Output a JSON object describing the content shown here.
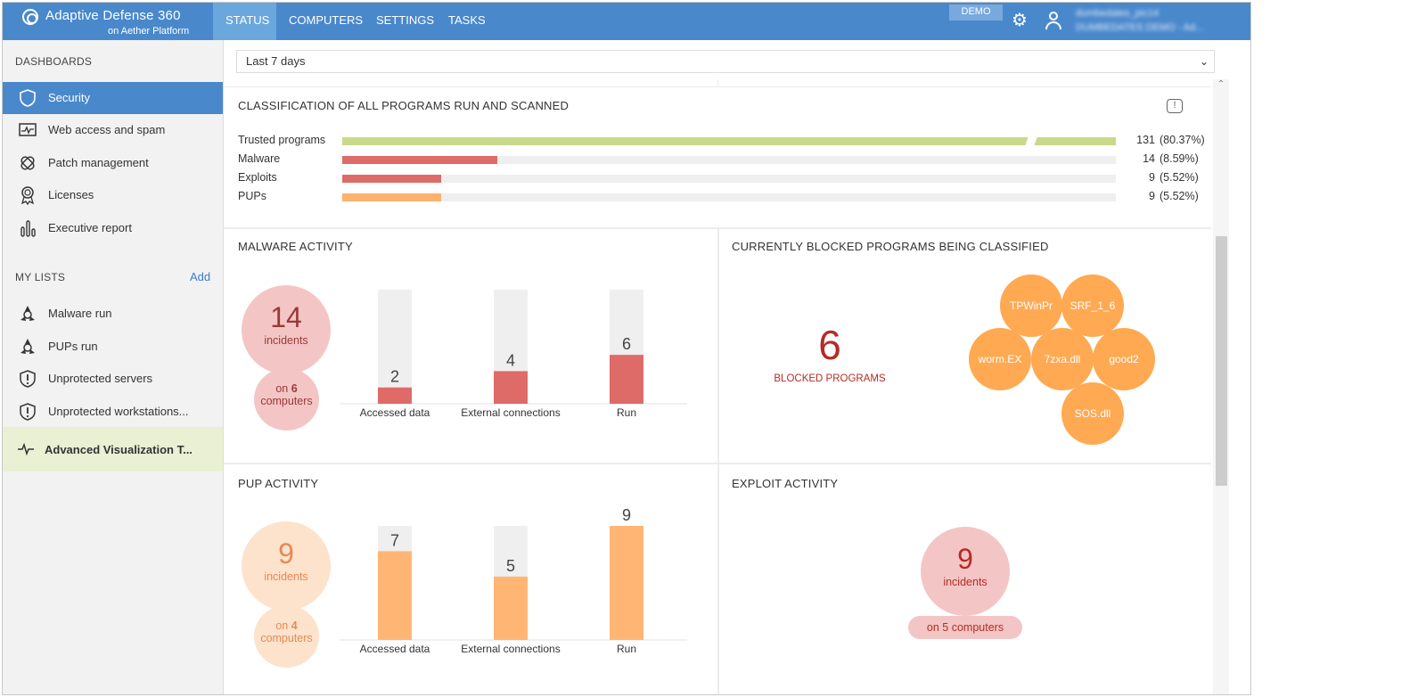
{
  "app": {
    "name": "Adaptive Defense 360",
    "platform": "on Aether Platform"
  },
  "nav": {
    "tabs": [
      "STATUS",
      "COMPUTERS",
      "SETTINGS",
      "TASKS"
    ],
    "active": "STATUS",
    "demo_badge": "DEMO",
    "user_line1": "dumbedates_pic14",
    "user_line2": "DUMBEDATES DEMO - Ad..."
  },
  "sidebar": {
    "dashboards_heading": "DASHBOARDS",
    "dashboards": [
      "Security",
      "Web access and spam",
      "Patch management",
      "Licenses",
      "Executive report"
    ],
    "my_lists_heading": "MY LISTS",
    "add_label": "Add",
    "lists": [
      "Malware run",
      "PUPs run",
      "Unprotected servers",
      "Unprotected workstations..."
    ],
    "advanced": "Advanced Visualization T..."
  },
  "period": {
    "selected": "Last 7 days"
  },
  "classification": {
    "title": "CLASSIFICATION OF ALL PROGRAMS RUN AND SCANNED",
    "info_icon": "!",
    "rows": [
      {
        "name": "Trusted programs",
        "count": "131",
        "pct": "(80.37%)",
        "fraction": 1.0,
        "color": "#c9d98a",
        "broken": true
      },
      {
        "name": "Malware",
        "count": "14",
        "pct": "(8.59%)",
        "fraction": 0.2,
        "color": "#de6b68"
      },
      {
        "name": "Exploits",
        "count": "9",
        "pct": "(5.52%)",
        "fraction": 0.128,
        "color": "#de6b68"
      },
      {
        "name": "PUPs",
        "count": "9",
        "pct": "(5.52%)",
        "fraction": 0.128,
        "color": "#ffb16e"
      }
    ]
  },
  "malware_activity": {
    "title": "MALWARE ACTIVITY",
    "incidents": "14",
    "incidents_label": "incidents",
    "computers_prefix": "on",
    "computers": "6",
    "computers_label": "computers",
    "bars": [
      {
        "label": "Accessed data",
        "value": 2
      },
      {
        "label": "External connections",
        "value": 4
      },
      {
        "label": "Run",
        "value": 6
      }
    ],
    "max": 14,
    "color": "#de6b68"
  },
  "blocked": {
    "title": "CURRENTLY BLOCKED PROGRAMS BEING CLASSIFIED",
    "count": "6",
    "label": "BLOCKED PROGRAMS",
    "programs": [
      "TPWinPr",
      "SRF_1_6",
      "worm.EX",
      "7zxa.dll",
      "good2",
      "SOS.dll"
    ]
  },
  "pup_activity": {
    "title": "PUP ACTIVITY",
    "incidents": "9",
    "incidents_label": "incidents",
    "computers_prefix": "on",
    "computers": "4",
    "computers_label": "computers",
    "bars": [
      {
        "label": "Accessed data",
        "value": 7
      },
      {
        "label": "External connections",
        "value": 5
      },
      {
        "label": "Run",
        "value": 9
      }
    ],
    "max": 9,
    "color": "#ffb675"
  },
  "exploit_activity": {
    "title": "EXPLOIT ACTIVITY",
    "incidents": "9",
    "incidents_label": "incidents",
    "computers_text": "on 5 computers"
  }
}
